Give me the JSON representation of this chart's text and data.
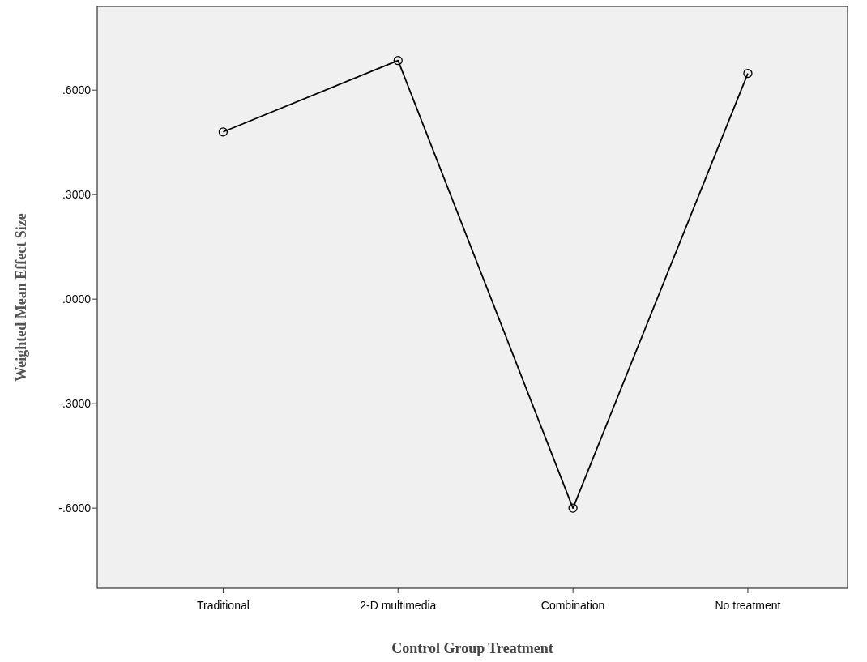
{
  "chart_data": {
    "type": "line",
    "xlabel": "Control Group Treatment",
    "ylabel": "Weighted Mean Effect Size",
    "categories": [
      "Traditional",
      "2-D multimedia",
      "Combination",
      "No treatment"
    ],
    "values": [
      0.48,
      0.685,
      -0.6,
      0.648
    ],
    "color": "#000000",
    "marker": "circle",
    "line_style": "solid",
    "ylim": [
      -0.83,
      0.84
    ],
    "yticks": [
      {
        "value": -0.6,
        "label": "-.6000"
      },
      {
        "value": -0.3,
        "label": "-.3000"
      },
      {
        "value": 0,
        "label": ".0000"
      },
      {
        "value": 0.3,
        "label": ".3000"
      },
      {
        "value": 0.6,
        "label": ".6000"
      }
    ],
    "grid": false
  }
}
